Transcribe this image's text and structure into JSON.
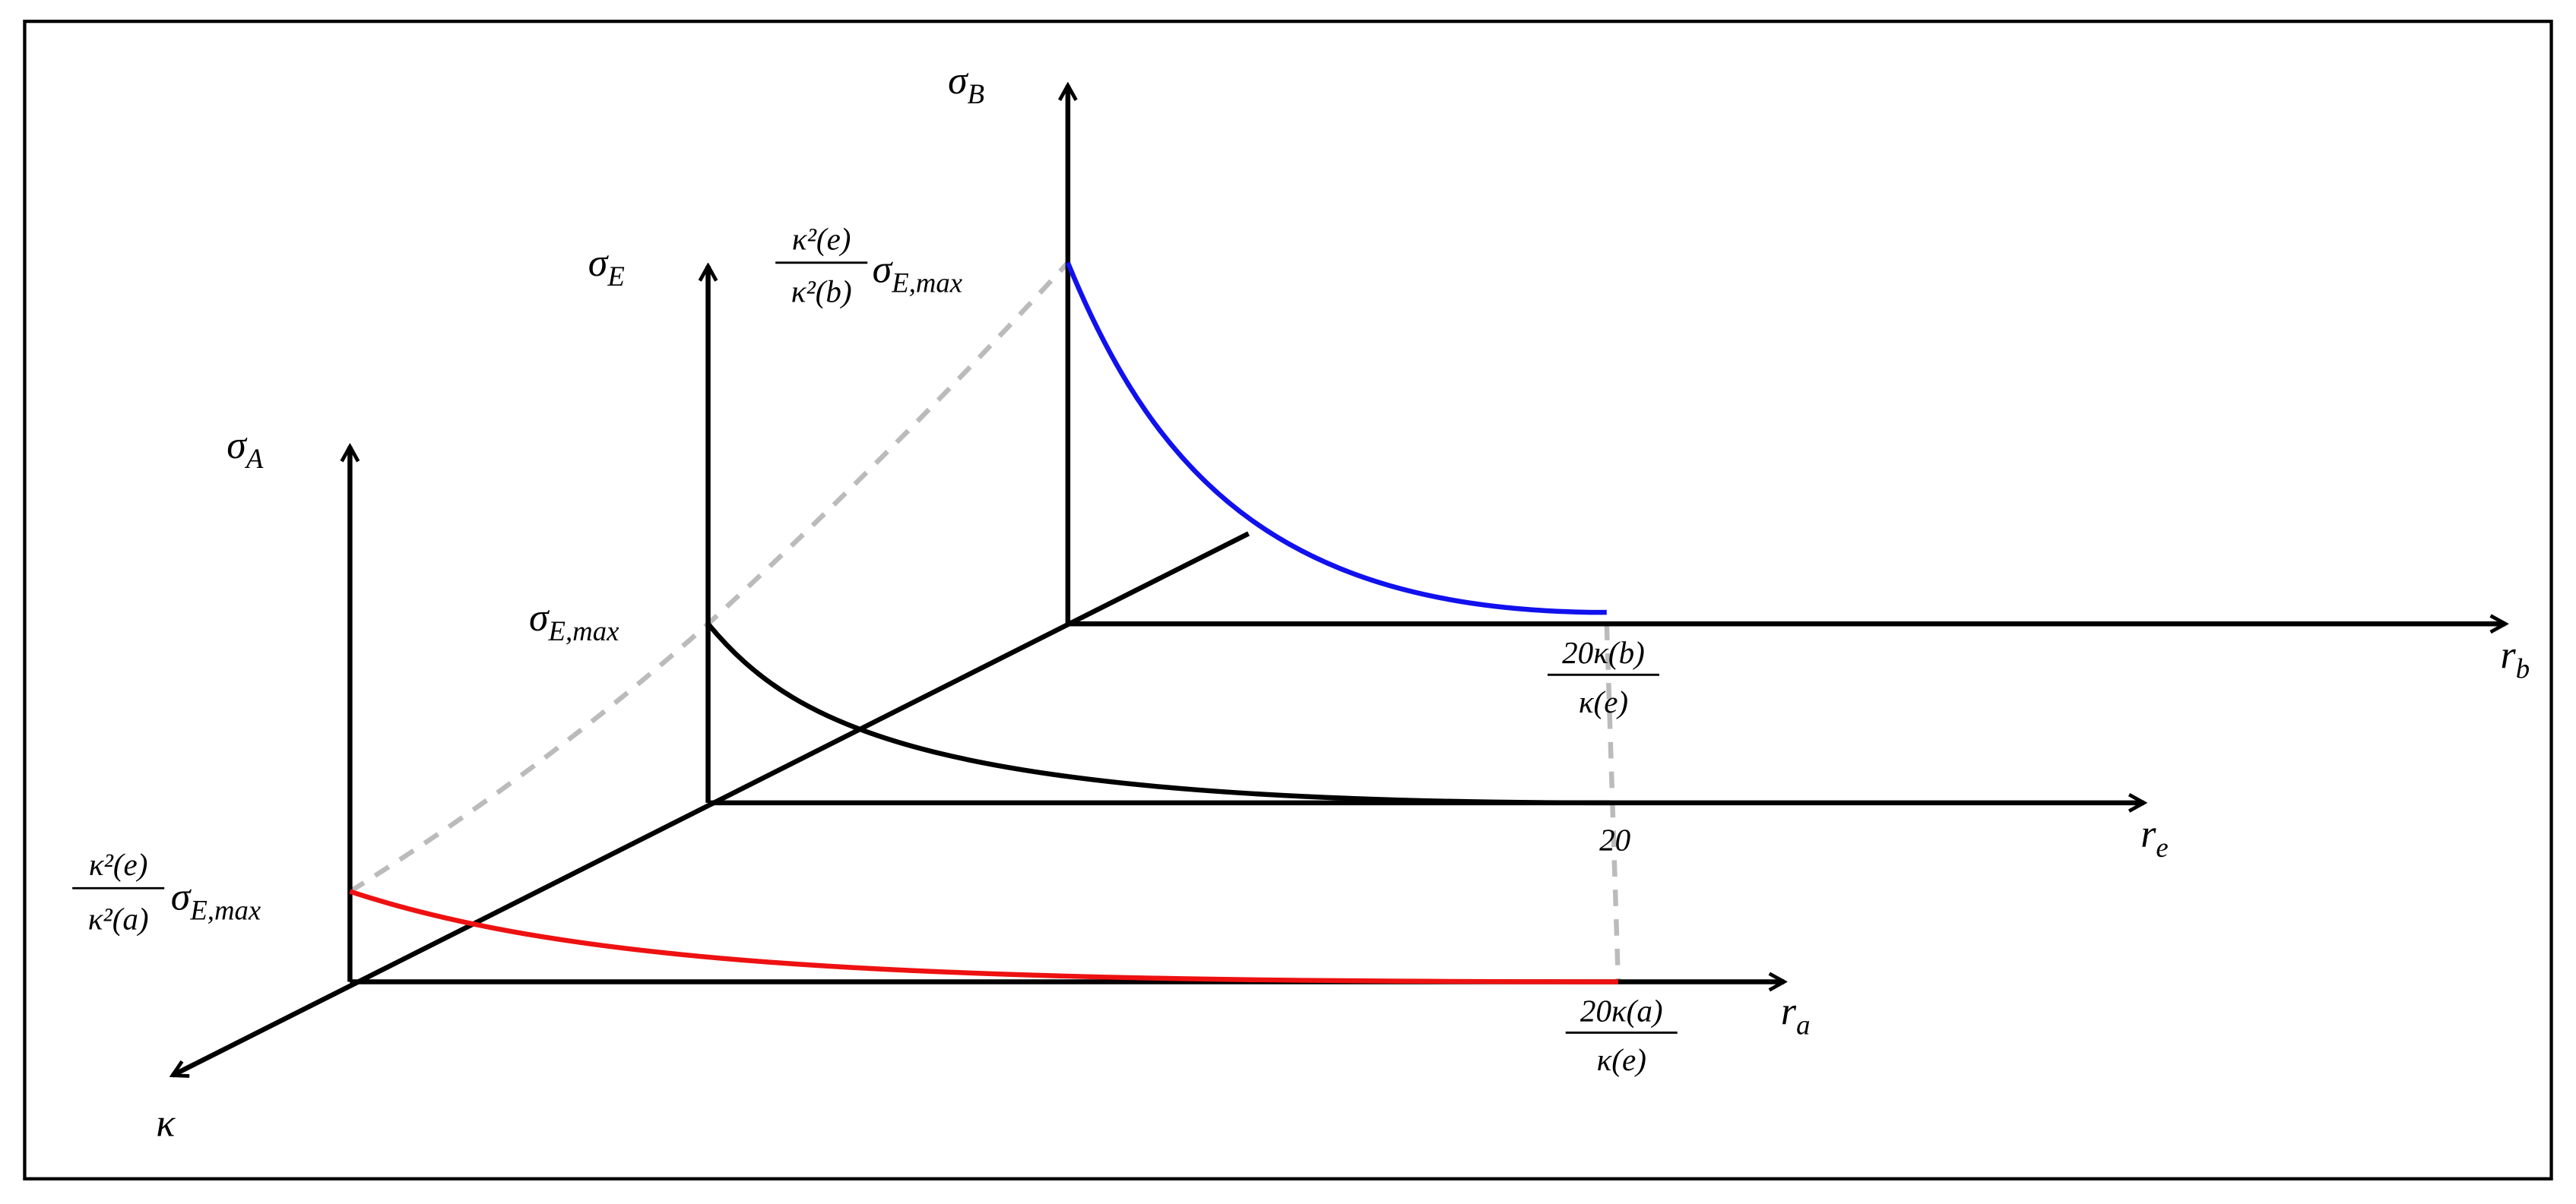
{
  "axes": {
    "a": {
      "vertical": {
        "symbol": "σ",
        "sub": "A"
      },
      "horizontal": {
        "symbol": "r",
        "sub": "a"
      }
    },
    "e": {
      "vertical": {
        "symbol": "σ",
        "sub": "E"
      },
      "horizontal": {
        "symbol": "r",
        "sub": "e"
      }
    },
    "b": {
      "vertical": {
        "symbol": "σ",
        "sub": "B"
      },
      "horizontal": {
        "symbol": "r",
        "sub": "b"
      }
    },
    "depth": {
      "symbol": "κ"
    }
  },
  "labels": {
    "e_max": {
      "symbol": "σ",
      "sub": "E,max"
    },
    "b_max": {
      "num": "κ²(e)",
      "den": "κ²(b)",
      "symbol": "σ",
      "sub": "E,max"
    },
    "a_max": {
      "num": "κ²(e)",
      "den": "κ²(a)",
      "symbol": "σ",
      "sub": "E,max"
    },
    "b_end": {
      "num": "20κ(b)",
      "den": "κ(e)"
    },
    "e_end": "20",
    "a_end": {
      "num": "20κ(a)",
      "den": "κ(e)"
    }
  }
}
